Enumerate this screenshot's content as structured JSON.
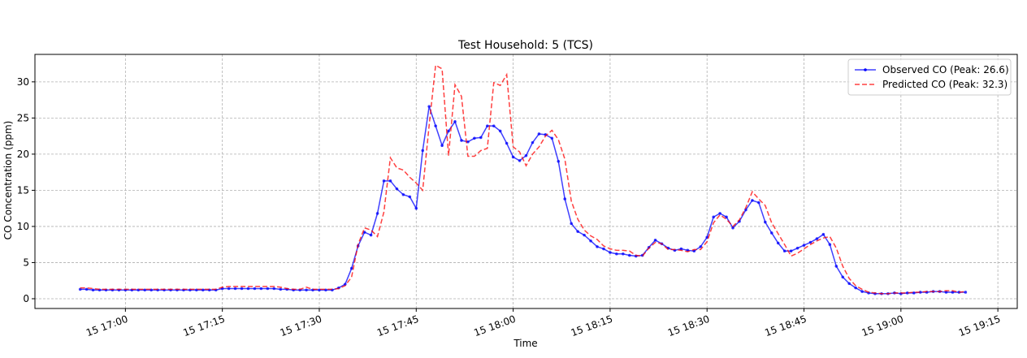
{
  "chart_data": {
    "type": "line",
    "title": "Test Household: 5 (TCS)",
    "x_label": "Time",
    "y_label": "CO Concentration (ppm)",
    "x": [
      "15 16:53",
      "15 16:54",
      "15 16:55",
      "15 16:56",
      "15 16:57",
      "15 16:58",
      "15 16:59",
      "15 17:00",
      "15 17:01",
      "15 17:02",
      "15 17:03",
      "15 17:04",
      "15 17:05",
      "15 17:06",
      "15 17:07",
      "15 17:08",
      "15 17:09",
      "15 17:10",
      "15 17:11",
      "15 17:12",
      "15 17:13",
      "15 17:14",
      "15 17:15",
      "15 17:16",
      "15 17:17",
      "15 17:18",
      "15 17:19",
      "15 17:20",
      "15 17:21",
      "15 17:22",
      "15 17:23",
      "15 17:24",
      "15 17:25",
      "15 17:26",
      "15 17:27",
      "15 17:28",
      "15 17:29",
      "15 17:30",
      "15 17:31",
      "15 17:32",
      "15 17:33",
      "15 17:34",
      "15 17:35",
      "15 17:36",
      "15 17:37",
      "15 17:38",
      "15 17:39",
      "15 17:40",
      "15 17:41",
      "15 17:42",
      "15 17:43",
      "15 17:44",
      "15 17:45",
      "15 17:46",
      "15 17:47",
      "15 17:48",
      "15 17:49",
      "15 17:50",
      "15 17:51",
      "15 17:52",
      "15 17:53",
      "15 17:54",
      "15 17:55",
      "15 17:56",
      "15 17:57",
      "15 17:58",
      "15 17:59",
      "15 18:00",
      "15 18:01",
      "15 18:02",
      "15 18:03",
      "15 18:04",
      "15 18:05",
      "15 18:06",
      "15 18:07",
      "15 18:08",
      "15 18:09",
      "15 18:10",
      "15 18:11",
      "15 18:12",
      "15 18:13",
      "15 18:14",
      "15 18:15",
      "15 18:16",
      "15 18:17",
      "15 18:18",
      "15 18:19",
      "15 18:20",
      "15 18:21",
      "15 18:22",
      "15 18:23",
      "15 18:24",
      "15 18:25",
      "15 18:26",
      "15 18:27",
      "15 18:28",
      "15 18:29",
      "15 18:30",
      "15 18:31",
      "15 18:32",
      "15 18:33",
      "15 18:34",
      "15 18:35",
      "15 18:36",
      "15 18:37",
      "15 18:38",
      "15 18:39",
      "15 18:40",
      "15 18:41",
      "15 18:42",
      "15 18:43",
      "15 18:44",
      "15 18:45",
      "15 18:46",
      "15 18:47",
      "15 18:48",
      "15 18:49",
      "15 18:50",
      "15 18:51",
      "15 18:52",
      "15 18:53",
      "15 18:54",
      "15 18:55",
      "15 18:56",
      "15 18:57",
      "15 18:58",
      "15 18:59",
      "15 19:00",
      "15 19:01",
      "15 19:02",
      "15 19:03",
      "15 19:04",
      "15 19:05",
      "15 19:06",
      "15 19:07",
      "15 19:08",
      "15 19:09",
      "15 19:10"
    ],
    "series": [
      {
        "name": "Observed CO (Peak: 26.6)",
        "color": "#0000ff",
        "linestyle": "solid",
        "marker": "dot",
        "values": [
          1.3,
          1.3,
          1.2,
          1.2,
          1.2,
          1.2,
          1.2,
          1.2,
          1.2,
          1.2,
          1.2,
          1.2,
          1.2,
          1.2,
          1.2,
          1.2,
          1.2,
          1.2,
          1.2,
          1.2,
          1.2,
          1.2,
          1.4,
          1.4,
          1.4,
          1.4,
          1.4,
          1.4,
          1.4,
          1.4,
          1.4,
          1.3,
          1.3,
          1.2,
          1.2,
          1.2,
          1.2,
          1.2,
          1.2,
          1.2,
          1.5,
          2.0,
          4.2,
          7.3,
          9.2,
          8.8,
          11.8,
          16.3,
          16.3,
          15.2,
          14.4,
          14.1,
          12.5,
          20.5,
          26.6,
          23.9,
          21.2,
          23.2,
          24.5,
          21.9,
          21.7,
          22.2,
          22.3,
          23.9,
          23.9,
          23.2,
          21.5,
          19.6,
          19.1,
          19.8,
          21.6,
          22.8,
          22.7,
          22.2,
          19.0,
          13.8,
          10.4,
          9.3,
          8.8,
          8.0,
          7.2,
          6.9,
          6.4,
          6.2,
          6.2,
          6.0,
          5.9,
          6.0,
          7.1,
          8.1,
          7.6,
          7.0,
          6.7,
          6.9,
          6.7,
          6.6,
          7.2,
          8.5,
          11.3,
          11.8,
          11.3,
          9.8,
          10.7,
          12.3,
          13.6,
          13.3,
          10.6,
          9.1,
          7.7,
          6.6,
          6.6,
          7.0,
          7.4,
          7.8,
          8.3,
          8.9,
          7.5,
          4.5,
          3.0,
          2.1,
          1.5,
          1.0,
          0.8,
          0.7,
          0.7,
          0.7,
          0.8,
          0.7,
          0.8,
          0.8,
          0.9,
          0.9,
          1.0,
          1.0,
          0.9,
          0.9,
          0.9,
          0.9
        ]
      },
      {
        "name": "Predicted CO (Peak: 32.3)",
        "color": "#ff0000",
        "linestyle": "dashed",
        "marker": "none",
        "values": [
          1.5,
          1.5,
          1.4,
          1.3,
          1.3,
          1.3,
          1.3,
          1.3,
          1.3,
          1.3,
          1.3,
          1.3,
          1.3,
          1.3,
          1.3,
          1.3,
          1.3,
          1.3,
          1.3,
          1.3,
          1.3,
          1.3,
          1.6,
          1.7,
          1.7,
          1.7,
          1.7,
          1.7,
          1.7,
          1.7,
          1.7,
          1.6,
          1.4,
          1.3,
          1.3,
          1.6,
          1.3,
          1.3,
          1.3,
          1.3,
          1.4,
          1.8,
          3.0,
          7.5,
          9.8,
          9.5,
          8.6,
          12.0,
          19.5,
          18.1,
          17.8,
          16.8,
          16.0,
          15.0,
          24.0,
          32.3,
          31.8,
          19.8,
          29.6,
          28.0,
          19.7,
          19.7,
          20.5,
          20.8,
          29.9,
          29.5,
          31.0,
          21.0,
          20.3,
          18.4,
          20.0,
          21.0,
          22.5,
          23.3,
          22.0,
          19.3,
          13.5,
          11.0,
          9.5,
          8.7,
          8.2,
          7.3,
          6.9,
          6.7,
          6.7,
          6.6,
          6.0,
          5.9,
          7.0,
          7.8,
          7.6,
          6.8,
          6.8,
          6.7,
          6.5,
          6.8,
          6.8,
          7.9,
          10.5,
          11.6,
          11.0,
          10.0,
          10.9,
          12.6,
          14.8,
          13.8,
          12.9,
          10.5,
          9.0,
          7.5,
          5.9,
          6.3,
          6.9,
          7.5,
          8.0,
          8.4,
          8.6,
          7.0,
          4.5,
          2.8,
          1.8,
          1.3,
          0.9,
          0.8,
          0.7,
          0.7,
          0.8,
          0.8,
          0.8,
          0.9,
          0.9,
          1.0,
          1.0,
          1.0,
          1.1,
          1.1,
          0.9,
          1.0
        ]
      }
    ],
    "xlim": [
      "15 16:46",
      "15 19:18"
    ],
    "xticks": [
      "15 17:00",
      "15 17:15",
      "15 17:30",
      "15 17:45",
      "15 18:00",
      "15 18:15",
      "15 18:30",
      "15 18:45",
      "15 19:00",
      "15 19:15"
    ],
    "ylim": [
      -1.35,
      33.8
    ],
    "yticks": [
      0,
      5,
      10,
      15,
      20,
      25,
      30
    ],
    "grid": true,
    "legend": "upper-right"
  }
}
